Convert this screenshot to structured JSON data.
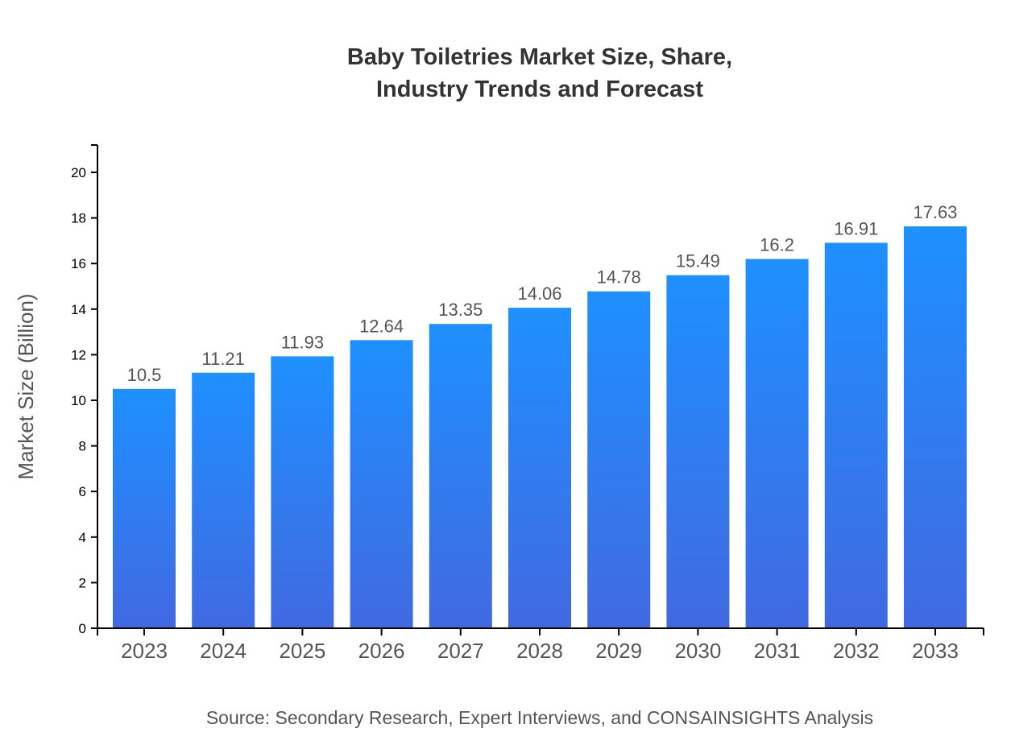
{
  "chart_data": {
    "type": "bar",
    "title_lines": [
      "Baby Toiletries Market Size, Share,",
      "Industry Trends and Forecast"
    ],
    "xlabel": "",
    "ylabel": "Market Size (Billion)",
    "categories": [
      "2023",
      "2024",
      "2025",
      "2026",
      "2027",
      "2028",
      "2029",
      "2030",
      "2031",
      "2032",
      "2033"
    ],
    "values": [
      10.5,
      11.21,
      11.93,
      12.64,
      13.35,
      14.06,
      14.78,
      15.49,
      16.2,
      16.91,
      17.63
    ],
    "value_labels": [
      "10.5",
      "11.21",
      "11.93",
      "12.64",
      "13.35",
      "14.06",
      "14.78",
      "15.49",
      "16.2",
      "16.91",
      "17.63"
    ],
    "ylim": [
      0,
      21.2
    ],
    "yticks": [
      "0",
      "2",
      "4",
      "6",
      "8",
      "10",
      "12",
      "14",
      "16",
      "18",
      "20"
    ],
    "grid": false,
    "colors": {
      "bar_top": "#1E90FF",
      "bar_bottom": "#4169E1",
      "text": "#555555",
      "title": "#333333"
    },
    "source": "Source: Secondary Research, Expert Interviews, and CONSAINSIGHTS Analysis"
  }
}
